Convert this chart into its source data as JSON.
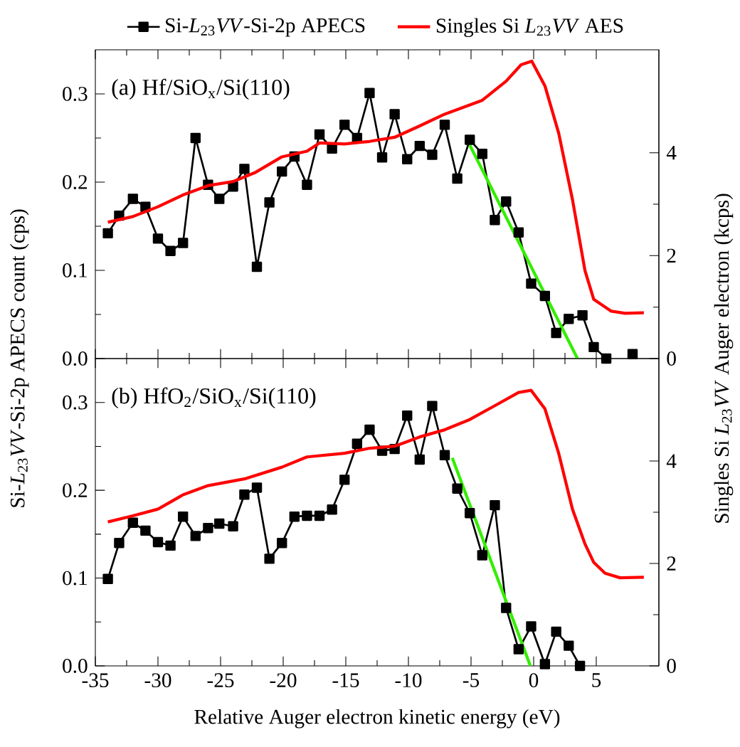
{
  "chart_data": [
    {
      "type": "line",
      "annotations": [
        "(a) Hf/SiO$_{x}$/Si(110)"
      ],
      "legend": "top",
      "tick_labels": "y",
      "ylabel": "Si-*L*$_{23}$*VV*-Si-2p APECS count (cps)",
      "y2label": "Singles Si *L*$_{23}$*VV* Auger electron (kcps)",
      "xlim": [
        -35,
        10
      ],
      "xticks": [
        -35,
        -30,
        -25,
        -20,
        -15,
        -10,
        -5,
        0,
        5
      ],
      "ylim": [
        0,
        0.35
      ],
      "yticks": [
        {
          "value": 0,
          "label": "0.0"
        },
        0.1,
        0.2,
        0.3
      ],
      "y2lim": [
        0,
        6
      ],
      "y2ticks": [
        0,
        2,
        4
      ],
      "series": [
        {
          "name": "Si-*L*$_{23}$*VV*-Si-2p APECS",
          "color": "#000000",
          "marker": "square",
          "x": [
            -34,
            -33.1,
            -32,
            -31,
            -30,
            -29,
            -28,
            -27,
            -26,
            -25.1,
            -24,
            -23.1,
            -22.1,
            -21.1,
            -20.1,
            -19.1,
            -18.1,
            -17.1,
            -16.1,
            -15.1,
            -14.1,
            -13.1,
            -12.1,
            -11.1,
            -10.1,
            -9.1,
            -8.1,
            -7.1,
            -6.1,
            -5.1,
            -4.1,
            -3.1,
            -2.2,
            -1.2,
            -0.2,
            0.9,
            1.8,
            2.8,
            3.9,
            4.8,
            5.8,
            7,
            7.9
          ],
          "values": [
            0.142,
            0.162,
            0.181,
            0.172,
            0.136,
            0.122,
            0.131,
            0.25,
            0.197,
            0.181,
            0.195,
            0.215,
            0.104,
            0.177,
            0.212,
            0.229,
            0.197,
            0.254,
            0.238,
            0.265,
            0.25,
            0.301,
            0.228,
            0.277,
            0.226,
            0.241,
            0.231,
            0.265,
            0.204,
            0.248,
            0.232,
            0.157,
            0.178,
            0.143,
            0.085,
            0.071,
            0.029,
            0.045,
            0.049,
            0.013,
            0,
            null,
            0.005
          ]
        },
        {
          "name": "Singles Si *L*$_{23}$*VV* AES",
          "color": "#ff0000",
          "axis": "y2",
          "marker": "none",
          "x": [
            -34,
            -32,
            -30,
            -28,
            -26,
            -24,
            -22.2,
            -20.1,
            -18.1,
            -17.1,
            -15.1,
            -13.1,
            -11.1,
            -9.1,
            -7.1,
            -4.1,
            -2.2,
            -1,
            -0.15,
            0.9,
            2,
            3.1,
            4.1,
            4.8,
            6.2,
            7.3,
            8.8
          ],
          "values": [
            2.65,
            2.76,
            2.95,
            3.18,
            3.36,
            3.44,
            3.62,
            3.92,
            4.03,
            4.19,
            4.17,
            4.22,
            4.3,
            4.52,
            4.75,
            5.02,
            5.39,
            5.71,
            5.78,
            5.3,
            4.38,
            3.09,
            1.71,
            1.15,
            0.92,
            0.88,
            0.89
          ]
        },
        {
          "color": "#33ee00",
          "marker": "none",
          "x": [
            -5.1,
            3.5
          ],
          "values": [
            0.242,
            0
          ]
        }
      ]
    },
    {
      "type": "line",
      "annotations": [
        "(b) HfO$_{2}$/SiO$_{x}$/Si(110)"
      ],
      "xlabel": "Relative Auger electron kinetic energy (eV)",
      "xlim": [
        -35,
        10
      ],
      "xticks": [
        -35,
        -30,
        -25,
        -20,
        -15,
        -10,
        -5,
        0,
        5
      ],
      "ylim": [
        0,
        0.35
      ],
      "yticks": [
        {
          "value": 0,
          "label": "0.0"
        },
        0.1,
        0.2,
        0.3
      ],
      "y2lim": [
        0,
        6
      ],
      "y2ticks": [
        0,
        2,
        4
      ],
      "series": [
        {
          "color": "#000000",
          "marker": "square",
          "x": [
            -34,
            -33.1,
            -32,
            -31,
            -30,
            -29,
            -28,
            -27,
            -26,
            -25.1,
            -24,
            -23.1,
            -22.1,
            -21.1,
            -20.1,
            -19.1,
            -18.1,
            -17.1,
            -16.1,
            -15.1,
            -14.1,
            -13.1,
            -12.1,
            -11.1,
            -10.1,
            -9.1,
            -8.1,
            -7.1,
            -6.1,
            -5.1,
            -4.1,
            -3.1,
            -2.2,
            -1.2,
            -0.2,
            0.9,
            1.8,
            2.8,
            3.7
          ],
          "values": [
            0.099,
            0.14,
            0.163,
            0.154,
            0.141,
            0.137,
            0.17,
            0.148,
            0.157,
            0.162,
            0.159,
            0.195,
            0.203,
            0.122,
            0.14,
            0.17,
            0.171,
            0.171,
            0.178,
            0.212,
            0.253,
            0.269,
            0.245,
            0.247,
            0.285,
            0.235,
            0.296,
            0.24,
            0.202,
            0.174,
            0.126,
            0.183,
            0.066,
            0.019,
            0.045,
            0.002,
            0.039,
            0.023,
            0
          ]
        },
        {
          "color": "#ff0000",
          "axis": "y2",
          "marker": "none",
          "x": [
            -34,
            -32,
            -30,
            -28,
            -26,
            -23.1,
            -20.1,
            -18.1,
            -15.1,
            -13.1,
            -11.1,
            -9.1,
            -7.1,
            -5.1,
            -3.1,
            -1.2,
            -0.2,
            0.9,
            2,
            3.1,
            4.1,
            4.8,
            5.7,
            6.9,
            8.8
          ],
          "values": [
            2.81,
            2.93,
            3.06,
            3.34,
            3.52,
            3.65,
            3.88,
            4.08,
            4.15,
            4.25,
            4.29,
            4.47,
            4.61,
            4.81,
            5.08,
            5.34,
            5.38,
            5.02,
            4.15,
            3.06,
            2.38,
            2.02,
            1.81,
            1.72,
            1.73
          ]
        },
        {
          "color": "#33ee00",
          "marker": "none",
          "x": [
            -6.5,
            -0.26
          ],
          "values": [
            0.237,
            0
          ]
        }
      ]
    }
  ]
}
